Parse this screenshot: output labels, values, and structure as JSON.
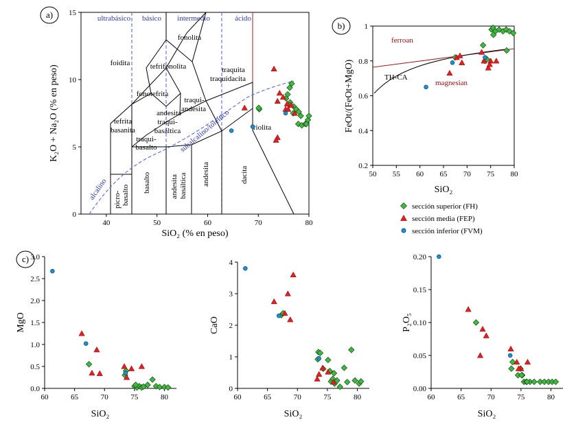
{
  "panels": {
    "a": "a)",
    "b": "b)",
    "c": "c)"
  },
  "legend": [
    {
      "label": "sección superior (FH)",
      "color": "#3fb93f",
      "marker": "diamond"
    },
    {
      "label": "sección media (FEP)",
      "color": "#e02020",
      "marker": "triangle"
    },
    {
      "label": "sección inferior (FVM)",
      "color": "#1f8fd0",
      "marker": "circle"
    }
  ],
  "tas": {
    "xlabel": "SiO₂ (% en peso)",
    "ylabel": "K₂O + Na₂O (% en peso)",
    "top_labels": [
      "ultrabásico",
      "básico",
      "intermedio",
      "ácido"
    ],
    "field_labels": {
      "fonolita": "fonolita",
      "foidita": "foidita",
      "tefrifonolita": "tefrifonolita",
      "fonotefrita": "fonotefrita",
      "traquita1": "traquita",
      "traquita2": "traquidacita",
      "traqui1": "traqui-",
      "traqui2": "andesita",
      "andt1": "andesita",
      "andt2": "traqui-",
      "andt3": "basáltica",
      "tef1": "tefrita",
      "tef2": "basanita",
      "tb1": "traqui-",
      "tb2": "basalto",
      "riolita": "riolita",
      "basalto": "basalto",
      "andesita_bas1": "andesita",
      "andesita_bas2": "basáltica",
      "andesita": "andesita",
      "dacita": "dacita",
      "pic1": "picro-",
      "pic2": "basalto",
      "alcalino": "alcalino",
      "subalcalino": "subalcalino/toleítico"
    }
  },
  "ferroan": {
    "xlabel": "SiO₂",
    "ylabel": "FeOt/(FeOt+MgO)",
    "labels": {
      "ferroan": "ferroan",
      "magnesian": "magnesian",
      "thca": "TH-CA"
    }
  },
  "chart_data": [
    {
      "id": "tas",
      "type": "scatter",
      "xlim": [
        35,
        80
      ],
      "ylim": [
        0,
        15
      ],
      "xticks": [
        40,
        50,
        60,
        70,
        80
      ],
      "yticks": [
        0,
        5,
        10,
        15
      ],
      "series": [
        {
          "name": "sección superior (FH)",
          "points": [
            [
              70.2,
              7.8
            ],
            [
              70.1,
              7.9
            ],
            [
              75.5,
              8.6
            ],
            [
              75.8,
              8.9
            ],
            [
              76.2,
              9.4
            ],
            [
              76.6,
              9.7
            ],
            [
              76.3,
              8.3
            ],
            [
              77.0,
              8.0
            ],
            [
              76.1,
              8.1
            ],
            [
              77.5,
              7.8
            ],
            [
              78.0,
              7.6
            ],
            [
              78.4,
              7.3
            ],
            [
              77.9,
              6.7
            ],
            [
              78.6,
              6.6
            ],
            [
              79.3,
              6.7
            ],
            [
              79.8,
              7.0
            ],
            [
              79.5,
              6.7
            ],
            [
              80.0,
              7.3
            ],
            [
              76.9,
              7.5
            ]
          ]
        },
        {
          "name": "sección media (FEP)",
          "points": [
            [
              67.3,
              7.9
            ],
            [
              73.1,
              10.8
            ],
            [
              73.8,
              8.4
            ],
            [
              74.2,
              9.0
            ],
            [
              75.4,
              7.8
            ],
            [
              75.7,
              8.2
            ],
            [
              76.5,
              8.1
            ],
            [
              74.9,
              8.7
            ],
            [
              73.8,
              5.7
            ],
            [
              73.5,
              5.5
            ],
            [
              77.2,
              7.5
            ],
            [
              75.9,
              7.8
            ]
          ]
        },
        {
          "name": "sección inferior (FVM)",
          "points": [
            [
              64.7,
              6.2
            ],
            [
              68.9,
              6.5
            ],
            [
              75.4,
              7.5
            ]
          ]
        }
      ]
    },
    {
      "id": "ferroan",
      "type": "scatter",
      "xlim": [
        50,
        80
      ],
      "ylim": [
        0.2,
        1.0
      ],
      "xticks": [
        50,
        55,
        60,
        65,
        70,
        75,
        80
      ],
      "yticks": [
        0.2,
        0.4,
        0.6,
        0.8,
        1.0
      ],
      "series": [
        {
          "name": "sección superior (FH)",
          "points": [
            [
              67.5,
              0.82
            ],
            [
              73.4,
              0.89
            ],
            [
              73.8,
              0.8
            ],
            [
              75.2,
              0.98
            ],
            [
              75.5,
              0.99
            ],
            [
              76.0,
              0.97
            ],
            [
              76.8,
              0.98
            ],
            [
              77.6,
              0.97
            ],
            [
              78.3,
              0.98
            ],
            [
              79.0,
              0.97
            ],
            [
              79.8,
              0.96
            ],
            [
              78.4,
              0.86
            ],
            [
              75.6,
              0.95
            ],
            [
              74.2,
              0.81
            ]
          ]
        },
        {
          "name": "sección media (FEP)",
          "points": [
            [
              66.3,
              0.73
            ],
            [
              67.8,
              0.82
            ],
            [
              68.5,
              0.83
            ],
            [
              68.9,
              0.79
            ],
            [
              73.1,
              0.85
            ],
            [
              73.6,
              0.8
            ],
            [
              74.5,
              0.76
            ],
            [
              75.0,
              0.8
            ],
            [
              76.2,
              0.8
            ],
            [
              74.8,
              0.78
            ]
          ]
        },
        {
          "name": "sección inferior (FVM)",
          "points": [
            [
              61.3,
              0.65
            ],
            [
              66.9,
              0.79
            ],
            [
              73.8,
              0.82
            ]
          ]
        }
      ]
    },
    {
      "id": "mgo",
      "type": "scatter",
      "xlabel": "SiO₂",
      "ylabel": "MgO",
      "xlim": [
        60,
        82
      ],
      "ylim": [
        0,
        3.0
      ],
      "xticks": [
        60,
        65,
        70,
        75,
        80
      ],
      "yticks": [
        "0.0",
        "0.5",
        "1.0",
        "1.5",
        "2.0",
        "2.5",
        "3.0"
      ],
      "series": [
        {
          "name": "sección superior (FH)",
          "points": [
            [
              67.4,
              0.55
            ],
            [
              73.4,
              0.3
            ],
            [
              73.6,
              0.4
            ],
            [
              75.0,
              0.05
            ],
            [
              75.4,
              0.02
            ],
            [
              75.8,
              0.05
            ],
            [
              76.2,
              0.02
            ],
            [
              76.5,
              0.04
            ],
            [
              77.2,
              0.08
            ],
            [
              78.0,
              0.2
            ],
            [
              78.6,
              0.05
            ],
            [
              79.2,
              0.03
            ],
            [
              80.0,
              0.03
            ],
            [
              80.6,
              0.02
            ],
            [
              75.2,
              0.08
            ]
          ]
        },
        {
          "name": "sección media (FEP)",
          "points": [
            [
              66.2,
              1.25
            ],
            [
              67.9,
              0.35
            ],
            [
              68.7,
              0.88
            ],
            [
              69.2,
              0.34
            ],
            [
              73.3,
              0.5
            ],
            [
              74.5,
              0.45
            ],
            [
              76.2,
              0.5
            ],
            [
              73.7,
              0.25
            ]
          ]
        },
        {
          "name": "sección inferior (FVM)",
          "points": [
            [
              61.3,
              2.67
            ],
            [
              66.9,
              1.02
            ],
            [
              73.5,
              0.35
            ]
          ]
        }
      ]
    },
    {
      "id": "cao",
      "type": "scatter",
      "xlabel": "SiO₂",
      "ylabel": "CaO",
      "xlim": [
        60,
        82
      ],
      "ylim": [
        0,
        4
      ],
      "xticks": [
        60,
        65,
        70,
        75,
        80
      ],
      "yticks": [
        "0",
        "1",
        "2",
        "3",
        "4"
      ],
      "series": [
        {
          "name": "sección superior (FH)",
          "points": [
            [
              67.3,
              2.32
            ],
            [
              67.6,
              2.38
            ],
            [
              73.5,
              1.15
            ],
            [
              73.8,
              1.12
            ],
            [
              73.4,
              0.92
            ],
            [
              74.3,
              0.62
            ],
            [
              75.1,
              0.9
            ],
            [
              75.4,
              0.55
            ],
            [
              75.6,
              0.22
            ],
            [
              76.1,
              0.48
            ],
            [
              76.6,
              0.25
            ],
            [
              77.1,
              0.05
            ],
            [
              77.8,
              0.65
            ],
            [
              78.3,
              0.2
            ],
            [
              79.0,
              1.22
            ],
            [
              79.6,
              0.25
            ],
            [
              80.3,
              0.15
            ],
            [
              80.6,
              0.22
            ],
            [
              75.9,
              0.3
            ],
            [
              76.2,
              0.15
            ]
          ]
        },
        {
          "name": "sección media (FEP)",
          "points": [
            [
              66.1,
              2.75
            ],
            [
              67.9,
              2.38
            ],
            [
              68.4,
              3.0
            ],
            [
              68.8,
              2.18
            ],
            [
              69.3,
              3.6
            ],
            [
              73.3,
              0.3
            ],
            [
              74.2,
              0.65
            ],
            [
              75.1,
              0.52
            ],
            [
              76.0,
              0.2
            ],
            [
              73.6,
              0.45
            ]
          ]
        },
        {
          "name": "sección inferior (FVM)",
          "points": [
            [
              61.3,
              3.8
            ],
            [
              66.9,
              2.3
            ],
            [
              73.6,
              0.95
            ]
          ]
        }
      ]
    },
    {
      "id": "p2o5",
      "type": "scatter",
      "xlabel": "SiO₂",
      "ylabel": "P₂O₅",
      "xlim": [
        60,
        82
      ],
      "ylim": [
        0,
        0.2
      ],
      "xticks": [
        60,
        65,
        70,
        75,
        80
      ],
      "yticks": [
        "0.00",
        "0.05",
        "0.10",
        "0.15",
        "0.20"
      ],
      "series": [
        {
          "name": "sección superior (FH)",
          "points": [
            [
              67.5,
              0.1
            ],
            [
              73.4,
              0.03
            ],
            [
              73.6,
              0.04
            ],
            [
              74.5,
              0.02
            ],
            [
              74.9,
              0.03
            ],
            [
              75.2,
              0.02
            ],
            [
              75.5,
              0.01
            ],
            [
              75.9,
              0.01
            ],
            [
              76.5,
              0.01
            ],
            [
              77.2,
              0.01
            ],
            [
              78.2,
              0.01
            ],
            [
              78.9,
              0.01
            ],
            [
              79.6,
              0.01
            ],
            [
              80.2,
              0.01
            ],
            [
              80.8,
              0.01
            ],
            [
              75.1,
              0.02
            ],
            [
              76.0,
              0.01
            ]
          ]
        },
        {
          "name": "sección media (FEP)",
          "points": [
            [
              66.2,
              0.12
            ],
            [
              68.2,
              0.05
            ],
            [
              68.6,
              0.09
            ],
            [
              69.2,
              0.08
            ],
            [
              73.3,
              0.06
            ],
            [
              74.3,
              0.04
            ],
            [
              75.0,
              0.03
            ],
            [
              76.1,
              0.04
            ],
            [
              74.6,
              0.03
            ]
          ]
        },
        {
          "name": "sección inferior (FVM)",
          "points": [
            [
              61.3,
              0.2
            ],
            [
              73.2,
              0.05
            ]
          ]
        }
      ]
    }
  ]
}
